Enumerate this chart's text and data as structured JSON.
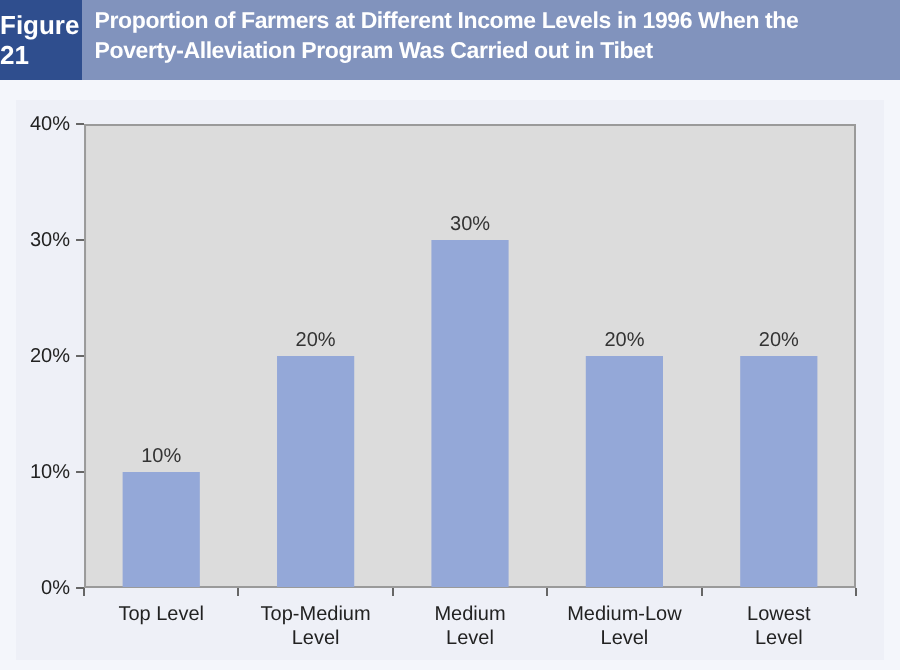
{
  "chart_data": {
    "type": "bar",
    "title": "Proportion of Farmers at Different Income Levels in 1996 When the Poverty-Alleviation Program Was Carried out in Tibet",
    "annotations": [
      "Figure 21"
    ],
    "categories": [
      "Top Level",
      "Top-Medium Level",
      "Medium Level",
      "Medium-Low Level",
      "Lowest Level"
    ],
    "values": [
      10,
      20,
      30,
      20,
      20
    ],
    "color": "#94a8d8",
    "value_labels": [
      "10%",
      "20%",
      "30%",
      "20%",
      "20%"
    ],
    "ylim": [
      0,
      40
    ],
    "yticks": [
      {
        "value": 0,
        "label": "0%"
      },
      {
        "value": 10,
        "label": "10%"
      },
      {
        "value": 20,
        "label": "20%"
      },
      {
        "value": 30,
        "label": "30%"
      },
      {
        "value": 40,
        "label": "40%"
      }
    ],
    "grid": false,
    "legend": false
  }
}
